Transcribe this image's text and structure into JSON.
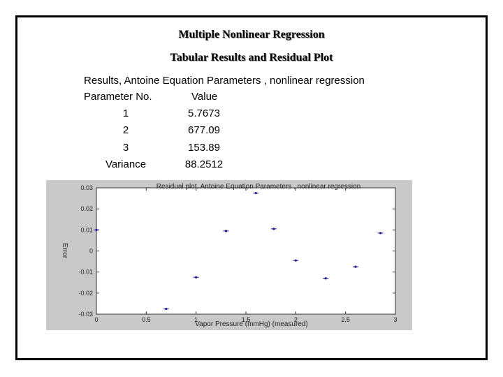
{
  "titles": {
    "main": "Multiple Nonlinear Regression",
    "sub": "Tabular Results and Residual Plot"
  },
  "results": {
    "heading": "Results, Antoine Equation Parameters , nonlinear regression",
    "col_param": "Parameter No.",
    "col_value": "Value",
    "rows": [
      {
        "label": "1",
        "value": "5.7673"
      },
      {
        "label": "2",
        "value": "677.09"
      },
      {
        "label": "3",
        "value": "153.89"
      },
      {
        "label": "Variance",
        "value": "88.2512"
      }
    ]
  },
  "chart_data": {
    "type": "scatter",
    "title": "Residual plot, Antoine Equation Parameters , nonlinear regression",
    "xlabel": "Vapor Pressure (mmHg) (measured)",
    "ylabel": "Error",
    "xlim": [
      0,
      3
    ],
    "ylim": [
      -0.03,
      0.03
    ],
    "xticks": [
      "0",
      "0.5",
      "1",
      "1.5",
      "2",
      "2.5",
      "3"
    ],
    "yticks": [
      "0.03",
      "0.02",
      "0.01",
      "0",
      "-0.01",
      "-0.02",
      "-0.03"
    ],
    "grid": false,
    "marker_color": "#1a1a8c",
    "x": [
      0.0,
      0.7,
      1.0,
      1.3,
      1.6,
      1.78,
      2.0,
      2.3,
      2.6,
      2.85
    ],
    "y": [
      0.01,
      -0.0275,
      -0.0125,
      0.0095,
      0.0275,
      0.0105,
      -0.0045,
      -0.013,
      -0.0075,
      0.0085
    ]
  }
}
